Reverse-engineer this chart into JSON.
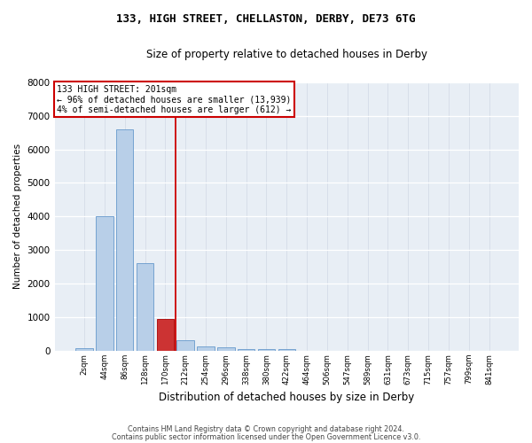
{
  "title1": "133, HIGH STREET, CHELLASTON, DERBY, DE73 6TG",
  "title2": "Size of property relative to detached houses in Derby",
  "xlabel": "Distribution of detached houses by size in Derby",
  "ylabel": "Number of detached properties",
  "bar_labels": [
    "2sqm",
    "44sqm",
    "86sqm",
    "128sqm",
    "170sqm",
    "212sqm",
    "254sqm",
    "296sqm",
    "338sqm",
    "380sqm",
    "422sqm",
    "464sqm",
    "506sqm",
    "547sqm",
    "589sqm",
    "631sqm",
    "673sqm",
    "715sqm",
    "757sqm",
    "799sqm",
    "841sqm"
  ],
  "bar_values": [
    80,
    4000,
    6600,
    2620,
    960,
    330,
    130,
    100,
    65,
    50,
    60,
    0,
    0,
    0,
    0,
    0,
    0,
    0,
    0,
    0,
    0
  ],
  "bar_color": "#b8cfe8",
  "bar_edge_color": "#6699cc",
  "highlight_bar_index": 4,
  "highlight_color": "#cc3333",
  "highlight_edge_color": "#aa0000",
  "vline_color": "#cc0000",
  "vline_x": 4.5,
  "annotation_text": "133 HIGH STREET: 201sqm\n← 96% of detached houses are smaller (13,939)\n4% of semi-detached houses are larger (612) →",
  "annotation_box_color": "#cc0000",
  "ylim": [
    0,
    8000
  ],
  "yticks": [
    0,
    1000,
    2000,
    3000,
    4000,
    5000,
    6000,
    7000,
    8000
  ],
  "bg_color": "#e8eef5",
  "footer1": "Contains HM Land Registry data © Crown copyright and database right 2024.",
  "footer2": "Contains public sector information licensed under the Open Government Licence v3.0."
}
